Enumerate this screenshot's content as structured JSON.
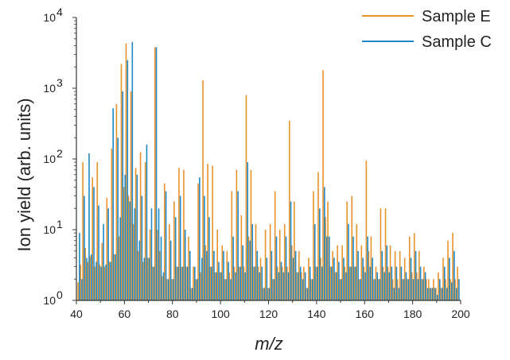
{
  "chart_data": {
    "type": "bar",
    "title": "",
    "xlabel": "m/z",
    "ylabel": "Ion yield (arb. units)",
    "x_scale": "linear",
    "y_scale": "log",
    "xlim": [
      40,
      200
    ],
    "ylim": [
      1,
      10000
    ],
    "x_ticks": [
      40,
      60,
      80,
      100,
      120,
      140,
      160,
      180,
      200
    ],
    "y_ticks": [
      {
        "value": 1,
        "base": "10",
        "exp": "0"
      },
      {
        "value": 10,
        "base": "10",
        "exp": "1"
      },
      {
        "value": 100,
        "base": "10",
        "exp": "2"
      },
      {
        "value": 1000,
        "base": "10",
        "exp": "3"
      },
      {
        "value": 10000,
        "base": "10",
        "exp": "4"
      }
    ],
    "legend_position": "top-right",
    "series": [
      {
        "name": "Sample E",
        "color": "#e8922b",
        "points": [
          [
            41,
            1.8
          ],
          [
            42,
            3.2
          ],
          [
            43,
            90
          ],
          [
            44,
            5.5
          ],
          [
            45,
            3.5
          ],
          [
            46,
            4.2
          ],
          [
            47,
            55
          ],
          [
            48,
            3
          ],
          [
            49,
            90
          ],
          [
            50,
            3.2
          ],
          [
            51,
            6.5
          ],
          [
            52,
            3
          ],
          [
            53,
            28
          ],
          [
            54,
            3.5
          ],
          [
            55,
            140
          ],
          [
            56,
            4.5
          ],
          [
            57,
            600
          ],
          [
            58,
            8
          ],
          [
            59,
            2200
          ],
          [
            60,
            40
          ],
          [
            61,
            4300
          ],
          [
            62,
            30
          ],
          [
            63,
            900
          ],
          [
            64,
            12
          ],
          [
            65,
            75
          ],
          [
            66,
            5
          ],
          [
            67,
            125
          ],
          [
            68,
            3.5
          ],
          [
            69,
            90
          ],
          [
            70,
            4
          ],
          [
            71,
            10
          ],
          [
            72,
            3
          ],
          [
            73,
            3800
          ],
          [
            74,
            10
          ],
          [
            75,
            5
          ],
          [
            76,
            2.2
          ],
          [
            77,
            45
          ],
          [
            78,
            2
          ],
          [
            79,
            12
          ],
          [
            80,
            2
          ],
          [
            81,
            25
          ],
          [
            82,
            3
          ],
          [
            83,
            75
          ],
          [
            84,
            3
          ],
          [
            85,
            70
          ],
          [
            86,
            3
          ],
          [
            87,
            8
          ],
          [
            88,
            1.5
          ],
          [
            89,
            3
          ],
          [
            90,
            2
          ],
          [
            91,
            45
          ],
          [
            92,
            2.5
          ],
          [
            93,
            1300
          ],
          [
            94,
            6
          ],
          [
            95,
            85
          ],
          [
            96,
            3
          ],
          [
            97,
            80
          ],
          [
            98,
            2.5
          ],
          [
            99,
            10
          ],
          [
            100,
            2.5
          ],
          [
            101,
            6
          ],
          [
            102,
            2
          ],
          [
            103,
            5
          ],
          [
            104,
            2.5
          ],
          [
            105,
            35
          ],
          [
            106,
            3
          ],
          [
            107,
            70
          ],
          [
            108,
            3
          ],
          [
            109,
            16
          ],
          [
            110,
            3
          ],
          [
            111,
            800
          ],
          [
            112,
            8
          ],
          [
            113,
            70
          ],
          [
            114,
            3
          ],
          [
            115,
            12
          ],
          [
            116,
            3
          ],
          [
            117,
            4
          ],
          [
            118,
            1.5
          ],
          [
            119,
            10
          ],
          [
            120,
            1.5
          ],
          [
            121,
            12
          ],
          [
            122,
            2
          ],
          [
            123,
            35
          ],
          [
            124,
            3
          ],
          [
            125,
            10
          ],
          [
            126,
            3
          ],
          [
            127,
            12
          ],
          [
            128,
            3
          ],
          [
            129,
            350
          ],
          [
            130,
            6
          ],
          [
            131,
            25
          ],
          [
            132,
            2.5
          ],
          [
            133,
            5
          ],
          [
            134,
            2.5
          ],
          [
            135,
            3
          ],
          [
            136,
            1.5
          ],
          [
            137,
            4
          ],
          [
            138,
            2
          ],
          [
            139,
            35
          ],
          [
            140,
            3
          ],
          [
            141,
            65
          ],
          [
            142,
            4
          ],
          [
            143,
            1800
          ],
          [
            144,
            15
          ],
          [
            145,
            25
          ],
          [
            146,
            3
          ],
          [
            147,
            5
          ],
          [
            148,
            2.5
          ],
          [
            149,
            6
          ],
          [
            150,
            2
          ],
          [
            151,
            6
          ],
          [
            152,
            3
          ],
          [
            153,
            25
          ],
          [
            154,
            3
          ],
          [
            155,
            30
          ],
          [
            156,
            3
          ],
          [
            157,
            12
          ],
          [
            158,
            2
          ],
          [
            159,
            6
          ],
          [
            160,
            3
          ],
          [
            161,
            95
          ],
          [
            162,
            5
          ],
          [
            163,
            8
          ],
          [
            164,
            2
          ],
          [
            165,
            3
          ],
          [
            166,
            2
          ],
          [
            167,
            20
          ],
          [
            168,
            3
          ],
          [
            169,
            20
          ],
          [
            170,
            3
          ],
          [
            171,
            6
          ],
          [
            172,
            2
          ],
          [
            173,
            5
          ],
          [
            174,
            2
          ],
          [
            175,
            5
          ],
          [
            176,
            2
          ],
          [
            177,
            4
          ],
          [
            178,
            2
          ],
          [
            179,
            8
          ],
          [
            180,
            2.5
          ],
          [
            181,
            9
          ],
          [
            182,
            2.5
          ],
          [
            183,
            5
          ],
          [
            184,
            2
          ],
          [
            185,
            3
          ],
          [
            186,
            2
          ],
          [
            187,
            2
          ],
          [
            188,
            1.5
          ],
          [
            189,
            2
          ],
          [
            190,
            1.5
          ],
          [
            191,
            2.5
          ],
          [
            192,
            1.5
          ],
          [
            193,
            4
          ],
          [
            194,
            2
          ],
          [
            195,
            7
          ],
          [
            196,
            2
          ],
          [
            197,
            9
          ],
          [
            198,
            2
          ],
          [
            199,
            3
          ]
        ]
      },
      {
        "name": "Sample C",
        "color": "#1f88c6",
        "points": [
          [
            41,
            9
          ],
          [
            42,
            2
          ],
          [
            43,
            30
          ],
          [
            44,
            4
          ],
          [
            45,
            120
          ],
          [
            46,
            4.5
          ],
          [
            47,
            40
          ],
          [
            48,
            3.5
          ],
          [
            49,
            22
          ],
          [
            50,
            3
          ],
          [
            51,
            12
          ],
          [
            52,
            3.2
          ],
          [
            53,
            20
          ],
          [
            54,
            3.5
          ],
          [
            55,
            520
          ],
          [
            56,
            4.5
          ],
          [
            57,
            200
          ],
          [
            58,
            15
          ],
          [
            59,
            900
          ],
          [
            60,
            60
          ],
          [
            61,
            2500
          ],
          [
            62,
            25
          ],
          [
            63,
            4500
          ],
          [
            64,
            20
          ],
          [
            65,
            60
          ],
          [
            66,
            7
          ],
          [
            67,
            30
          ],
          [
            68,
            4
          ],
          [
            69,
            160
          ],
          [
            70,
            4
          ],
          [
            71,
            20
          ],
          [
            72,
            3
          ],
          [
            73,
            3800
          ],
          [
            74,
            20
          ],
          [
            75,
            8
          ],
          [
            76,
            2.5
          ],
          [
            77,
            35
          ],
          [
            78,
            2
          ],
          [
            79,
            7
          ],
          [
            80,
            2
          ],
          [
            81,
            15
          ],
          [
            82,
            3
          ],
          [
            83,
            30
          ],
          [
            84,
            3
          ],
          [
            85,
            10
          ],
          [
            86,
            3
          ],
          [
            87,
            5
          ],
          [
            88,
            1.5
          ],
          [
            89,
            3
          ],
          [
            90,
            2
          ],
          [
            91,
            55
          ],
          [
            92,
            4
          ],
          [
            93,
            30
          ],
          [
            94,
            5
          ],
          [
            95,
            15
          ],
          [
            96,
            3
          ],
          [
            97,
            5
          ],
          [
            98,
            2.5
          ],
          [
            99,
            3.5
          ],
          [
            100,
            2.5
          ],
          [
            101,
            5
          ],
          [
            102,
            2
          ],
          [
            103,
            3.5
          ],
          [
            104,
            2
          ],
          [
            105,
            8
          ],
          [
            106,
            2.5
          ],
          [
            107,
            35
          ],
          [
            108,
            3
          ],
          [
            109,
            6
          ],
          [
            110,
            2.5
          ],
          [
            111,
            90
          ],
          [
            112,
            7
          ],
          [
            113,
            12
          ],
          [
            114,
            3
          ],
          [
            115,
            5
          ],
          [
            116,
            2.5
          ],
          [
            117,
            3
          ],
          [
            118,
            1.5
          ],
          [
            119,
            4
          ],
          [
            120,
            1.5
          ],
          [
            121,
            5
          ],
          [
            122,
            2
          ],
          [
            123,
            8
          ],
          [
            124,
            2.5
          ],
          [
            125,
            3.5
          ],
          [
            126,
            2.5
          ],
          [
            127,
            8
          ],
          [
            128,
            2.5
          ],
          [
            129,
            25
          ],
          [
            130,
            4
          ],
          [
            131,
            5
          ],
          [
            132,
            2.5
          ],
          [
            133,
            3
          ],
          [
            134,
            2
          ],
          [
            135,
            2.5
          ],
          [
            136,
            1.5
          ],
          [
            137,
            3
          ],
          [
            138,
            2
          ],
          [
            139,
            12
          ],
          [
            140,
            3
          ],
          [
            141,
            20
          ],
          [
            142,
            3
          ],
          [
            143,
            40
          ],
          [
            144,
            8
          ],
          [
            145,
            8
          ],
          [
            146,
            3
          ],
          [
            147,
            4
          ],
          [
            148,
            2.5
          ],
          [
            149,
            3.5
          ],
          [
            150,
            2
          ],
          [
            151,
            4
          ],
          [
            152,
            2.5
          ],
          [
            153,
            12
          ],
          [
            154,
            3
          ],
          [
            155,
            8
          ],
          [
            156,
            3
          ],
          [
            157,
            5
          ],
          [
            158,
            2
          ],
          [
            159,
            4
          ],
          [
            160,
            2.5
          ],
          [
            161,
            8
          ],
          [
            162,
            3
          ],
          [
            163,
            4
          ],
          [
            164,
            2
          ],
          [
            165,
            2.5
          ],
          [
            166,
            2
          ],
          [
            167,
            5
          ],
          [
            168,
            2.5
          ],
          [
            169,
            6
          ],
          [
            170,
            2.5
          ],
          [
            171,
            3
          ],
          [
            172,
            1.5
          ],
          [
            173,
            3
          ],
          [
            174,
            1.5
          ],
          [
            175,
            3
          ],
          [
            176,
            2
          ],
          [
            177,
            2.5
          ],
          [
            178,
            2
          ],
          [
            179,
            4
          ],
          [
            180,
            2
          ],
          [
            181,
            5
          ],
          [
            182,
            2
          ],
          [
            183,
            3
          ],
          [
            184,
            2
          ],
          [
            185,
            2.5
          ],
          [
            186,
            1.5
          ],
          [
            187,
            1.5
          ],
          [
            188,
            1.5
          ],
          [
            189,
            1.5
          ],
          [
            190,
            1.2
          ],
          [
            191,
            2
          ],
          [
            192,
            1.5
          ],
          [
            193,
            3
          ],
          [
            194,
            1.5
          ],
          [
            195,
            4
          ],
          [
            196,
            1.8
          ],
          [
            197,
            5
          ],
          [
            198,
            1.5
          ],
          [
            199,
            2
          ]
        ]
      }
    ]
  }
}
